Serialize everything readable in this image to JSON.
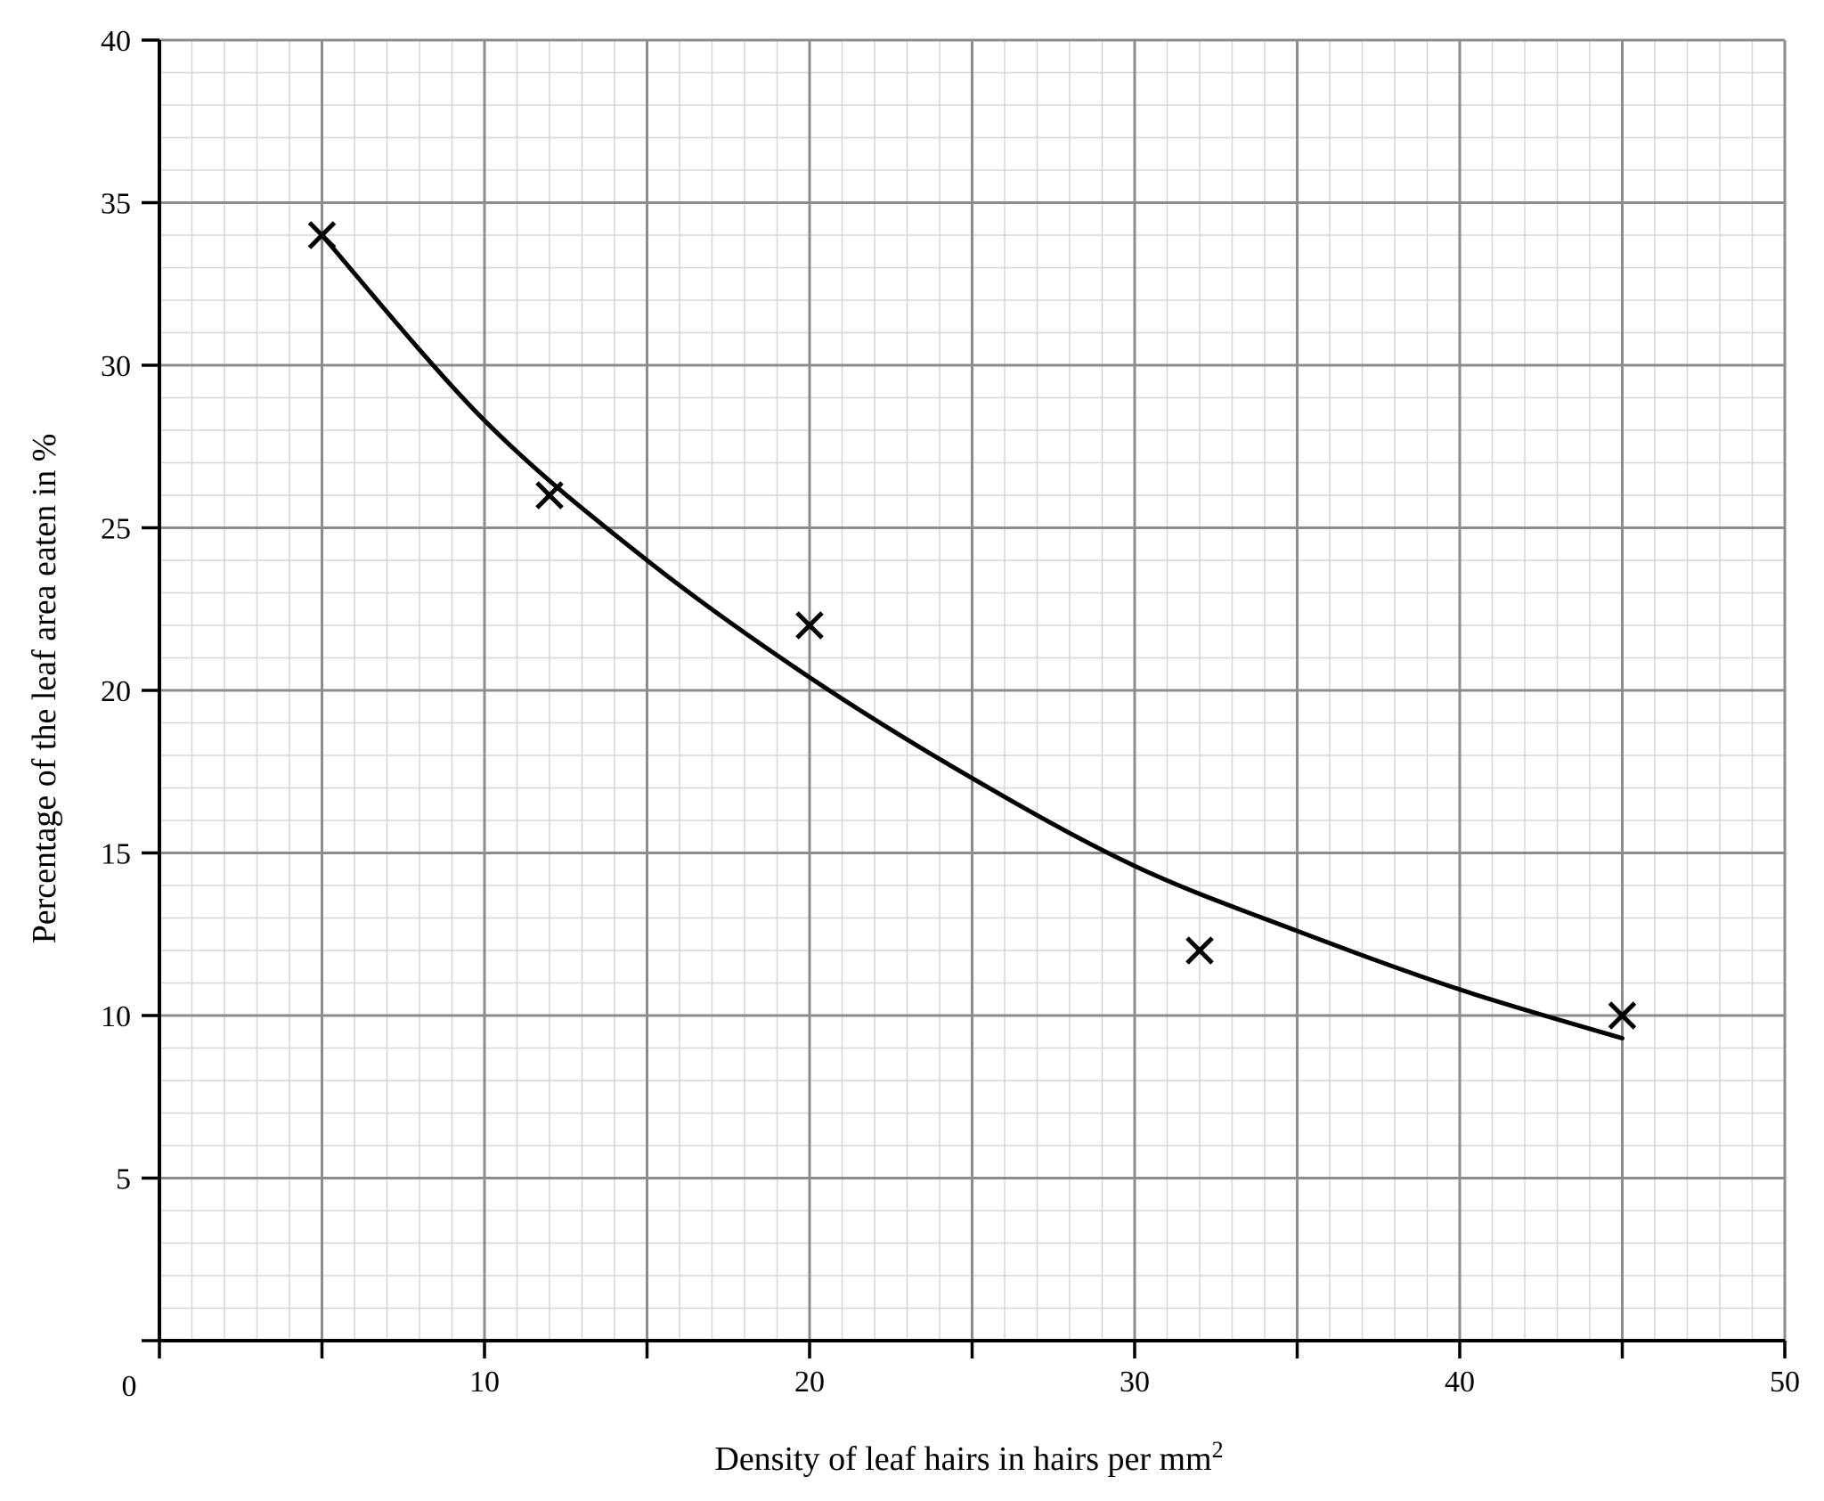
{
  "chart_data": {
    "type": "scatter",
    "title": "",
    "xlabel": "Density of leaf hairs in hairs per mm",
    "xlabel_superscript": "2",
    "ylabel": "Percentage of the leaf area eaten in %",
    "xlim": [
      0,
      50
    ],
    "ylim": [
      0,
      40
    ],
    "x_major_step": 5,
    "y_major_step": 5,
    "x_minor_step": 1,
    "y_minor_step": 1,
    "x_tick_labels": [
      {
        "value": 0,
        "label": "0"
      },
      {
        "value": 10,
        "label": "10"
      },
      {
        "value": 20,
        "label": "20"
      },
      {
        "value": 30,
        "label": "30"
      },
      {
        "value": 40,
        "label": "40"
      },
      {
        "value": 50,
        "label": "50"
      }
    ],
    "y_tick_labels": [
      {
        "value": 5,
        "label": "5"
      },
      {
        "value": 10,
        "label": "10"
      },
      {
        "value": 15,
        "label": "15"
      },
      {
        "value": 20,
        "label": "20"
      },
      {
        "value": 25,
        "label": "25"
      },
      {
        "value": 30,
        "label": "30"
      },
      {
        "value": 35,
        "label": "35"
      },
      {
        "value": 40,
        "label": "40"
      }
    ],
    "grid": true,
    "marker": "x",
    "points": [
      {
        "x": 5,
        "y": 34
      },
      {
        "x": 12,
        "y": 26
      },
      {
        "x": 20,
        "y": 22
      },
      {
        "x": 32,
        "y": 12
      },
      {
        "x": 45,
        "y": 10
      }
    ],
    "curve_of_best_fit": [
      {
        "x": 5,
        "y": 34
      },
      {
        "x": 10,
        "y": 28.3
      },
      {
        "x": 15,
        "y": 24
      },
      {
        "x": 20,
        "y": 20.4
      },
      {
        "x": 25,
        "y": 17.3
      },
      {
        "x": 30,
        "y": 14.6
      },
      {
        "x": 35,
        "y": 12.6
      },
      {
        "x": 40,
        "y": 10.8
      },
      {
        "x": 45,
        "y": 9.3
      }
    ],
    "colors": {
      "axis": "#000000",
      "major_grid": "#8c8c8c",
      "minor_grid": "#d6d6d6",
      "marker": "#000000",
      "curve": "#000000"
    }
  }
}
